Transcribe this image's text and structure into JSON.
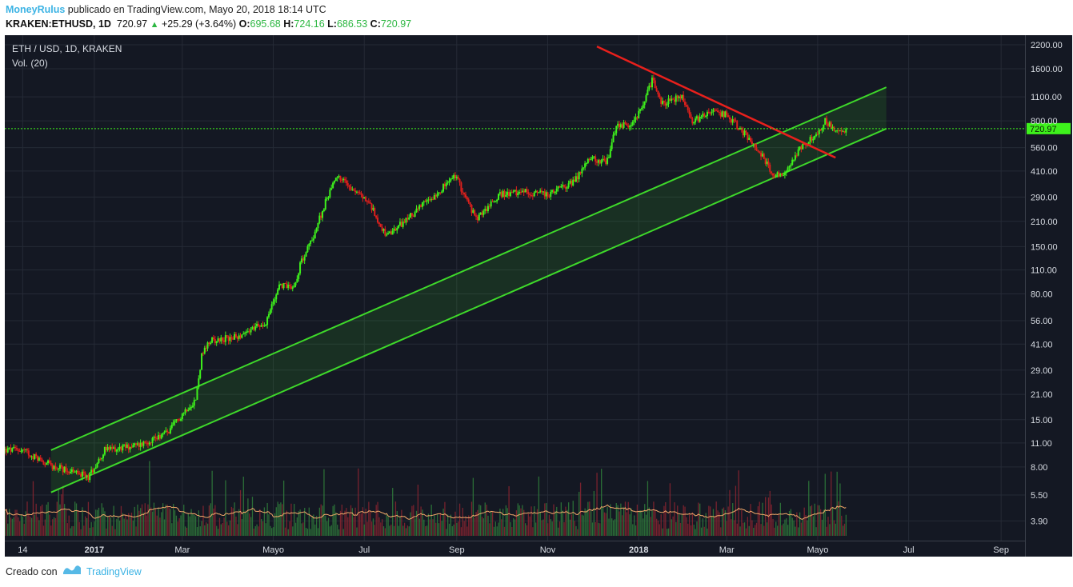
{
  "header": {
    "author": "MoneyRulus",
    "published": "publicado en TradingView.com, Mayo 20, 2018 18:14 UTC",
    "symbol": "KRAKEN:ETHUSD, 1D",
    "last": "720.97",
    "change": "+25.29 (+3.64%)",
    "o_label": "O:",
    "o_value": "695.68",
    "h_label": "H:",
    "h_value": "724.16",
    "l_label": "L:",
    "l_value": "686.53",
    "c_label": "C:",
    "c_value": "720.97"
  },
  "footer": {
    "created": "Creado con",
    "brand": "TradingView"
  },
  "colors": {
    "background": "#141823",
    "grid": "#252a36",
    "up": "#3ef21c",
    "down": "#e0201c",
    "channel": "#3ed82a",
    "resistance": "#e8201c",
    "ma": "#f3a96a",
    "price_line": "#3ef21c"
  },
  "chart_data": {
    "type": "candlestick",
    "title": "ETH / USD, 1D, KRAKEN",
    "volume_label": "Vol. (20)",
    "y_scale": "log",
    "ylim": [
      3.0,
      2500
    ],
    "y_ticks": [
      "2200.00",
      "1600.00",
      "1100.00",
      "800.00",
      "560.00",
      "410.00",
      "290.00",
      "210.00",
      "150.00",
      "110.00",
      "80.00",
      "56.00",
      "41.00",
      "29.00",
      "21.00",
      "15.00",
      "11.00",
      "8.00",
      "5.50",
      "3.90"
    ],
    "x_ticks": [
      "14",
      "2017",
      "Mar",
      "Mayo",
      "Jul",
      "Sep",
      "Nov",
      "2018",
      "Mar",
      "Mayo",
      "Jul",
      "Sep"
    ],
    "x_ticks_bold": [
      "2017",
      "2018"
    ],
    "last_price": "720.97",
    "price_path": [
      [
        "2016-11-14",
        10.0
      ],
      [
        "2016-12-05",
        8.0
      ],
      [
        "2016-12-16",
        7.6
      ],
      [
        "2016-12-28",
        7.0
      ],
      [
        "2017-01-08",
        10.0
      ],
      [
        "2017-01-31",
        10.7
      ],
      [
        "2017-02-20",
        12.8
      ],
      [
        "2017-03-04",
        17.5
      ],
      [
        "2017-03-10",
        19.5
      ],
      [
        "2017-03-14",
        35.0
      ],
      [
        "2017-03-20",
        43.0
      ],
      [
        "2017-04-06",
        45.0
      ],
      [
        "2017-04-26",
        55.0
      ],
      [
        "2017-05-05",
        90.0
      ],
      [
        "2017-05-15",
        89.0
      ],
      [
        "2017-05-20",
        125.0
      ],
      [
        "2017-05-27",
        165.0
      ],
      [
        "2017-06-05",
        270.0
      ],
      [
        "2017-06-12",
        390.0
      ],
      [
        "2017-06-21",
        340.0
      ],
      [
        "2017-07-04",
        270.0
      ],
      [
        "2017-07-16",
        170.0
      ],
      [
        "2017-07-25",
        200.0
      ],
      [
        "2017-08-07",
        250.0
      ],
      [
        "2017-08-21",
        320.0
      ],
      [
        "2017-08-31",
        385.0
      ],
      [
        "2017-09-14",
        215.0
      ],
      [
        "2017-09-30",
        300.0
      ],
      [
        "2017-10-18",
        310.0
      ],
      [
        "2017-11-02",
        300.0
      ],
      [
        "2017-11-19",
        360.0
      ],
      [
        "2017-11-29",
        480.0
      ],
      [
        "2017-12-11",
        470.0
      ],
      [
        "2017-12-17",
        760.0
      ],
      [
        "2017-12-28",
        760.0
      ],
      [
        "2018-01-05",
        1050.0
      ],
      [
        "2018-01-10",
        1380.0
      ],
      [
        "2018-01-17",
        1000.0
      ],
      [
        "2018-01-30",
        1110.0
      ],
      [
        "2018-02-06",
        780.0
      ],
      [
        "2018-02-16",
        900.0
      ],
      [
        "2018-03-01",
        870.0
      ],
      [
        "2018-03-14",
        660.0
      ],
      [
        "2018-03-23",
        530.0
      ],
      [
        "2018-04-02",
        385.0
      ],
      [
        "2018-04-10",
        410.0
      ],
      [
        "2018-04-20",
        560.0
      ],
      [
        "2018-04-30",
        660.0
      ],
      [
        "2018-05-06",
        800.0
      ],
      [
        "2018-05-14",
        690.0
      ],
      [
        "2018-05-20",
        720.97
      ]
    ],
    "annotations": {
      "channel_upper": [
        [
          "2016-12-03",
          10.0
        ],
        [
          "2018-06-16",
          1250.0
        ]
      ],
      "channel_lower": [
        [
          "2016-12-03",
          5.7
        ],
        [
          "2018-06-16",
          720.0
        ]
      ],
      "resistance": [
        [
          "2017-12-04",
          2150.0
        ],
        [
          "2018-05-13",
          490.0
        ]
      ]
    }
  }
}
